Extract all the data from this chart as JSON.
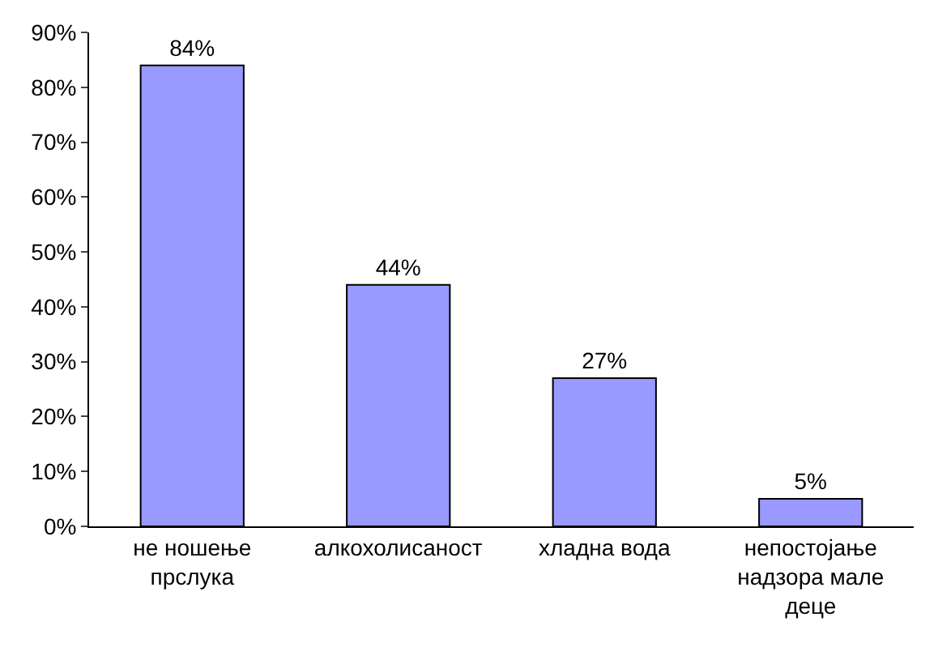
{
  "chart_data": {
    "type": "bar",
    "categories": [
      "не ношење прслука",
      "алкохолисаност",
      "хладна вода",
      "непостојање надзора мале деце"
    ],
    "values": [
      84,
      44,
      27,
      5
    ],
    "color": "#9999ff",
    "value_labels": [
      "84%",
      "44%",
      "27%",
      "5%"
    ],
    "ylim": [
      0,
      90
    ],
    "yticks": [
      {
        "value": 0,
        "label": "0%"
      },
      {
        "value": 10,
        "label": "10%"
      },
      {
        "value": 20,
        "label": "20%"
      },
      {
        "value": 30,
        "label": "30%"
      },
      {
        "value": 40,
        "label": "40%"
      },
      {
        "value": 50,
        "label": "50%"
      },
      {
        "value": 60,
        "label": "60%"
      },
      {
        "value": 70,
        "label": "70%"
      },
      {
        "value": 80,
        "label": "80%"
      },
      {
        "value": 90,
        "label": "90%"
      }
    ]
  }
}
